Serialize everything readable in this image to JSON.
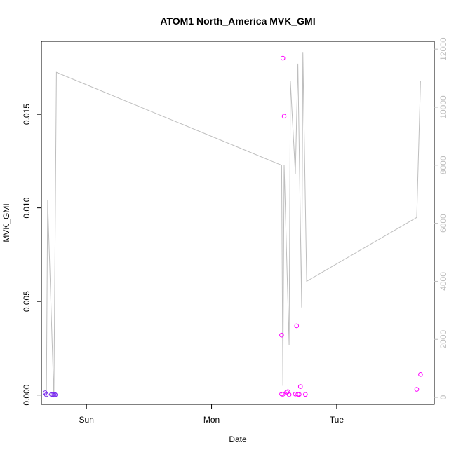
{
  "chart_data": {
    "type": "scatter",
    "title": "ATOM1 North_America MVK_GMI",
    "xlabel": "Date",
    "ylabel": "MVK_GMI",
    "x_ticks": [
      "Sun",
      "Mon",
      "Tue"
    ],
    "y_ticks": [
      "0.000",
      "0.005",
      "0.010",
      "0.015"
    ],
    "y2_ticks": [
      "0",
      "2000",
      "4000",
      "6000",
      "8000",
      "10000",
      "12000"
    ],
    "xlim": [
      -0.36,
      2.78
    ],
    "ylim": [
      -0.0005,
      0.0189
    ],
    "y2lim": [
      -240,
      12270
    ],
    "grid": false,
    "colors": {
      "axis": "#000000",
      "secondary_axis": "#bebebe",
      "line": "#bebebe",
      "points_early": "#7b2cf0",
      "points_late": "#ff00ff"
    },
    "series": [
      {
        "type": "line",
        "axis": "secondary",
        "color": "#bebebe",
        "x": [
          -0.32,
          -0.31,
          -0.26,
          -0.24,
          1.56,
          1.57,
          1.58,
          1.62,
          1.63,
          1.67,
          1.69,
          1.72,
          1.73,
          1.76,
          2.64,
          2.67
        ],
        "y": [
          0,
          6800,
          0,
          11200,
          8000,
          400,
          8000,
          1800,
          10900,
          7700,
          11500,
          3100,
          11900,
          4000,
          6200,
          10900
        ]
      },
      {
        "type": "scatter",
        "axis": "primary",
        "color": "#7b2cf0",
        "x": [
          -0.33,
          -0.32,
          -0.28,
          -0.27,
          -0.26,
          -0.25,
          -0.25
        ],
        "y": [
          0.00012,
          2e-05,
          3e-05,
          2e-05,
          1e-05,
          2e-05,
          0.0
        ],
        "values": [
          0.00012,
          2e-05,
          3e-05,
          2e-05,
          1e-05,
          2e-05,
          0.0
        ]
      },
      {
        "type": "scatter",
        "axis": "primary",
        "color": "#ff00ff",
        "x": [
          1.56,
          1.56,
          1.57,
          1.57,
          1.58,
          1.6,
          1.61,
          1.62,
          1.67,
          1.68,
          1.69,
          1.7,
          1.71,
          1.75,
          2.64,
          2.67
        ],
        "y": [
          0.0032,
          5e-05,
          4e-05,
          0.018,
          0.0149,
          0.00015,
          0.00018,
          2e-05,
          5e-05,
          0.0037,
          4e-05,
          3e-05,
          0.00045,
          3e-05,
          0.0003,
          0.0011
        ],
        "values": [
          0.0032,
          5e-05,
          4e-05,
          0.018,
          0.0149,
          0.00015,
          0.00018,
          2e-05,
          5e-05,
          0.0037,
          4e-05,
          3e-05,
          0.00045,
          3e-05,
          0.0003,
          0.0011
        ]
      }
    ]
  }
}
